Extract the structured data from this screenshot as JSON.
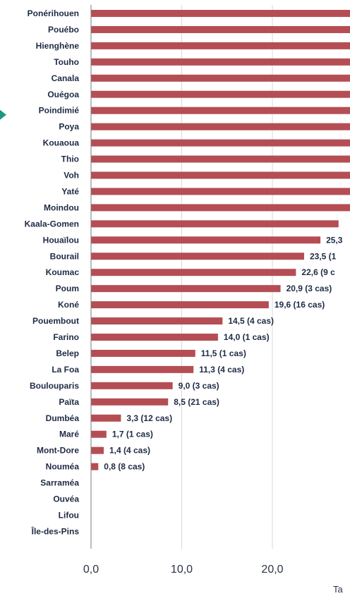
{
  "colors": {
    "bar": "#b54e54",
    "grid": "#d9d9d9",
    "axis": "#7a7a7a",
    "arrow": "#1a9a80"
  },
  "chart_data": {
    "type": "bar",
    "orientation": "horizontal",
    "xlim": [
      0,
      30
    ],
    "xticks": [
      0,
      10,
      20
    ],
    "xtick_labels": [
      "0,0",
      "10,0",
      "20,0"
    ],
    "xlabel": "Ta",
    "grid": true,
    "categories": [
      "Ponérihouen",
      "Pouébo",
      "Hienghène",
      "Touho",
      "Canala",
      "Ouégoa",
      "Poindimié",
      "Poya",
      "Kouaoua",
      "Thio",
      "Voh",
      "Yaté",
      "Moindou",
      "Kaala-Gomen",
      "Houaïlou",
      "Bourail",
      "Koumac",
      "Poum",
      "Koné",
      "Pouembout",
      "Farino",
      "Belep",
      "La Foa",
      "Boulouparis",
      "Païta",
      "Dumbéa",
      "Maré",
      "Mont-Dore",
      "Nouméa",
      "Sarraméa",
      "Ouvéa",
      "Lifou",
      "Île-des-Pins"
    ],
    "values": [
      30,
      30,
      30,
      30,
      30,
      30,
      30,
      30,
      30,
      30,
      30,
      30,
      30,
      27.3,
      25.3,
      23.5,
      22.6,
      20.9,
      19.6,
      14.5,
      14.0,
      11.5,
      11.3,
      9.0,
      8.5,
      3.3,
      1.7,
      1.4,
      0.8,
      0,
      0,
      0,
      0
    ],
    "data_labels": [
      "",
      "",
      "",
      "",
      "",
      "",
      "",
      "",
      "",
      "",
      "",
      "",
      "",
      "",
      "25,3",
      "23,5 (1",
      "22,6 (9 c",
      "20,9 (3 cas)",
      "19,6 (16 cas)",
      "14,5 (4 cas)",
      "14,0 (1 cas)",
      "11,5 (1 cas)",
      "11,3 (4 cas)",
      "9,0 (3 cas)",
      "8,5 (21 cas)",
      "3,3 (12 cas)",
      "1,7 (1 cas)",
      "1,4 (4 cas)",
      "0,8 (8 cas)",
      "",
      "",
      "",
      ""
    ],
    "highlighted_category": "Poindimié"
  }
}
